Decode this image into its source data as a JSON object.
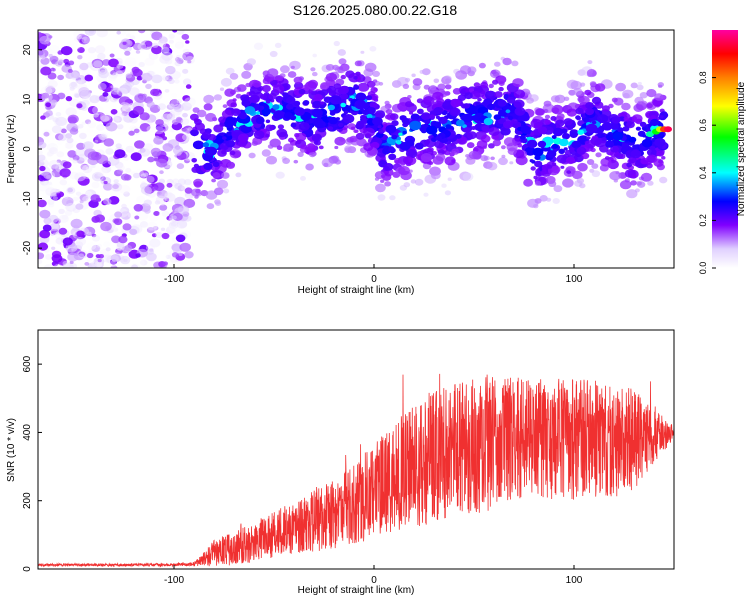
{
  "title": "S126.2025.080.00.22.G18",
  "chart_data": [
    {
      "type": "heatmap",
      "title": "S126.2025.080.00.22.G18",
      "xlabel": "Height of straight line (km)",
      "ylabel": "Frequency (Hz)",
      "xlim": [
        -168,
        150
      ],
      "ylim": [
        -24,
        24
      ],
      "xticks": [
        -100,
        0,
        100
      ],
      "yticks": [
        -20,
        -10,
        0,
        10,
        20
      ],
      "colorbar": {
        "label": "Normalized spectral amplitude",
        "range": [
          0,
          1
        ],
        "ticks": [
          0.0,
          0.2,
          0.4,
          0.6,
          0.8
        ],
        "tick_labels": [
          "0.0",
          "0.2",
          "0.4",
          "0.6",
          "0.8"
        ]
      },
      "ridge": {
        "description": "dominant frequency track vs height",
        "x": [
          -90,
          -80,
          -72,
          -60,
          -45,
          -30,
          -20,
          -10,
          0,
          5,
          10,
          20,
          30,
          40,
          50,
          60,
          70,
          80,
          90,
          100,
          110,
          120,
          130,
          140,
          145
        ],
        "y": [
          0,
          0,
          4,
          7,
          8,
          6,
          7,
          10,
          6,
          0,
          2,
          4,
          4,
          5,
          7,
          7,
          8,
          -1,
          1,
          2,
          6,
          3,
          1,
          3,
          4
        ]
      },
      "noise_region": [
        -168,
        -92
      ],
      "grid": false,
      "legend": "colorbar-right"
    },
    {
      "type": "line",
      "xlabel": "Height of straight line (km)",
      "ylabel": "SNR (10 * v/v)",
      "xlim": [
        -168,
        150
      ],
      "ylim": [
        0,
        700
      ],
      "xticks": [
        -100,
        0,
        100
      ],
      "yticks": [
        0,
        200,
        400,
        600
      ],
      "color": "#f03030",
      "grid": false,
      "envelope": {
        "x": [
          -168,
          -100,
          -90,
          -85,
          -80,
          -70,
          -60,
          -50,
          -40,
          -30,
          -20,
          -10,
          0,
          10,
          20,
          30,
          40,
          50,
          60,
          70,
          80,
          90,
          100,
          110,
          120,
          130,
          140,
          150
        ],
        "mean": [
          12,
          12,
          14,
          30,
          45,
          60,
          80,
          100,
          120,
          140,
          160,
          190,
          230,
          270,
          300,
          330,
          350,
          360,
          370,
          380,
          380,
          370,
          380,
          380,
          370,
          380,
          390,
          400
        ],
        "amplitude": [
          4,
          4,
          6,
          20,
          40,
          50,
          60,
          70,
          80,
          90,
          100,
          120,
          140,
          160,
          180,
          200,
          200,
          200,
          200,
          180,
          180,
          180,
          180,
          170,
          160,
          150,
          80,
          20
        ]
      }
    }
  ]
}
